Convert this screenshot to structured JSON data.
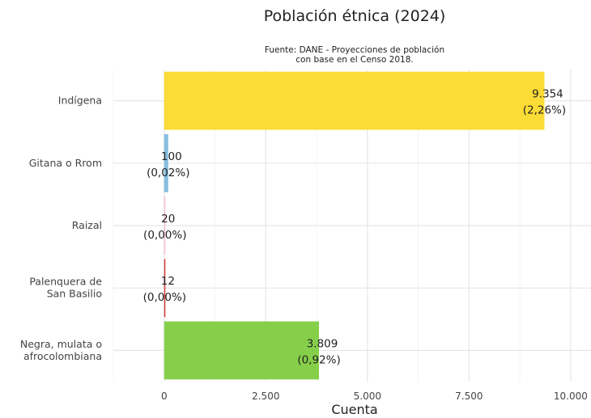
{
  "chart_data": {
    "type": "bar",
    "orientation": "horizontal",
    "title": "Población étnica (2024)",
    "subtitle_lines": [
      "Fuente: DANE - Proyecciones de población",
      "con base en el Censo 2018."
    ],
    "xlabel": "Cuenta",
    "ylabel": "",
    "xlim": [
      -1250,
      10500
    ],
    "x_ticks": [
      0,
      2500,
      5000,
      7500,
      10000
    ],
    "x_tick_labels": [
      "0",
      "2.500",
      "5.000",
      "7.500",
      "10.000"
    ],
    "grid": true,
    "legend": "none",
    "categories": [
      {
        "label_lines": [
          "Indígena"
        ],
        "value": 9354,
        "value_label": "9.354",
        "pct_label": "(2,26%)",
        "color": "#FBDB35"
      },
      {
        "label_lines": [
          "Gitana o Rrom"
        ],
        "value": 100,
        "value_label": "100",
        "pct_label": "(0,02%)",
        "color": "#86BEDF"
      },
      {
        "label_lines": [
          "Raizal"
        ],
        "value": 20,
        "value_label": "20",
        "pct_label": "(0,00%)",
        "color": "#F4C3CE"
      },
      {
        "label_lines": [
          "Palenquera de",
          "San Basilio"
        ],
        "value": 12,
        "value_label": "12",
        "pct_label": "(0,00%)",
        "color": "#D03A3A"
      },
      {
        "label_lines": [
          "Negra, mulata o",
          "afrocolombiana"
        ],
        "value": 3809,
        "value_label": "3.809",
        "pct_label": "(0,92%)",
        "color": "#86CF4A"
      }
    ]
  }
}
